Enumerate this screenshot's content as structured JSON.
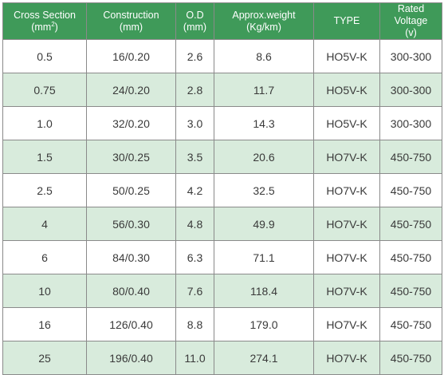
{
  "table": {
    "headers": [
      {
        "line1": "Cross Section",
        "line2_pre": "(mm",
        "line2_sup": "2",
        "line2_post": ")"
      },
      {
        "line1": "Construction",
        "line2_pre": "(mm)",
        "line2_sup": "",
        "line2_post": ""
      },
      {
        "line1": "O.D",
        "line2_pre": "(mm)",
        "line2_sup": "",
        "line2_post": ""
      },
      {
        "line1": "Approx.weight",
        "line2_pre": "(Kg/km)",
        "line2_sup": "",
        "line2_post": ""
      },
      {
        "line1": "TYPE",
        "line2_pre": "",
        "line2_sup": "",
        "line2_post": ""
      },
      {
        "line1": "Rated Voltage",
        "line2_pre": "(v)",
        "line2_sup": "",
        "line2_post": ""
      }
    ],
    "rows": [
      [
        "0.5",
        "16/0.20",
        "2.6",
        "8.6",
        "HO5V-K",
        "300-300"
      ],
      [
        "0.75",
        "24/0.20",
        "2.8",
        "11.7",
        "HO5V-K",
        "300-300"
      ],
      [
        "1.0",
        "32/0.20",
        "3.0",
        "14.3",
        "HO5V-K",
        "300-300"
      ],
      [
        "1.5",
        "30/0.25",
        "3.5",
        "20.6",
        "HO7V-K",
        "450-750"
      ],
      [
        "2.5",
        "50/0.25",
        "4.2",
        "32.5",
        "HO7V-K",
        "450-750"
      ],
      [
        "4",
        "56/0.30",
        "4.8",
        "49.9",
        "HO7V-K",
        "450-750"
      ],
      [
        "6",
        "84/0.30",
        "6.3",
        "71.1",
        "HO7V-K",
        "450-750"
      ],
      [
        "10",
        "80/0.40",
        "7.6",
        "118.4",
        "HO7V-K",
        "450-750"
      ],
      [
        "16",
        "126/0.40",
        "8.8",
        "179.0",
        "HO7V-K",
        "450-750"
      ],
      [
        "25",
        "196/0.40",
        "11.0",
        "274.1",
        "HO7V-K",
        "450-750"
      ]
    ]
  },
  "colors": {
    "header_bg": "#3f9a59",
    "header_text": "#ffffff",
    "row_alt_bg": "#d8ebdc",
    "row_plain_bg": "#ffffff",
    "border": "#8a8a8a",
    "cell_text": "#3a3a3a"
  }
}
